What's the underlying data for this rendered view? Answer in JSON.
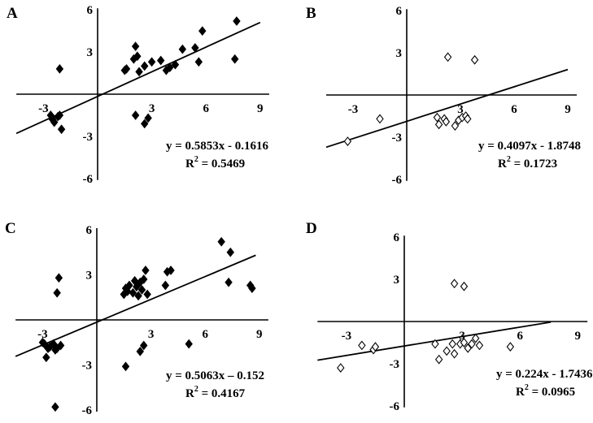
{
  "chart_data": [
    {
      "type": "scatter",
      "panel_label": "A",
      "marker": "filled-diamond",
      "xticks": [
        "-3",
        "3",
        "6",
        "9"
      ],
      "yticks": [
        "6",
        "3",
        "-3",
        "-6"
      ],
      "xlim": [
        -4.5,
        9.5
      ],
      "ylim": [
        -6,
        6
      ],
      "points": [
        [
          -2.1,
          1.8
        ],
        [
          -2.2,
          -1.6
        ],
        [
          -2.5,
          -1.8
        ],
        [
          -2.4,
          -2.0
        ],
        [
          -2.0,
          -2.5
        ],
        [
          -2.1,
          -1.5
        ],
        [
          -2.6,
          -1.5
        ],
        [
          1.5,
          1.7
        ],
        [
          1.6,
          1.8
        ],
        [
          2.0,
          2.5
        ],
        [
          2.1,
          3.4
        ],
        [
          2.2,
          2.7
        ],
        [
          2.3,
          1.6
        ],
        [
          2.6,
          2.0
        ],
        [
          3.0,
          2.3
        ],
        [
          3.5,
          2.4
        ],
        [
          3.8,
          1.7
        ],
        [
          4.0,
          1.9
        ],
        [
          4.3,
          2.1
        ],
        [
          4.7,
          3.2
        ],
        [
          5.4,
          3.3
        ],
        [
          5.6,
          2.3
        ],
        [
          5.8,
          4.5
        ],
        [
          7.7,
          5.2
        ],
        [
          7.6,
          2.5
        ],
        [
          2.1,
          -1.5
        ],
        [
          2.6,
          -2.1
        ],
        [
          2.8,
          -1.7
        ]
      ],
      "regression": {
        "slope": 0.5853,
        "intercept": -0.1616,
        "xrange": [
          -4.5,
          9.0
        ]
      },
      "equation": "y = 0.5853x - 0.1616",
      "r2_prefix": "R",
      "r2_sup": "2",
      "r2_value": " = 0.5469"
    },
    {
      "type": "scatter",
      "panel_label": "B",
      "marker": "open-diamond",
      "xticks": [
        "-3",
        "3",
        "6",
        "9"
      ],
      "yticks": [
        "6",
        "3",
        "-3",
        "-6"
      ],
      "xlim": [
        -4.5,
        9.5
      ],
      "ylim": [
        -6,
        6
      ],
      "points": [
        [
          -3.3,
          -3.3
        ],
        [
          -1.5,
          -1.7
        ],
        [
          1.7,
          -1.6
        ],
        [
          1.8,
          -2.1
        ],
        [
          2.1,
          -1.7
        ],
        [
          2.2,
          -1.9
        ],
        [
          2.7,
          -2.2
        ],
        [
          2.9,
          -1.8
        ],
        [
          3.1,
          -1.6
        ],
        [
          3.3,
          -1.5
        ],
        [
          3.4,
          -1.7
        ],
        [
          2.3,
          2.7
        ],
        [
          3.8,
          2.5
        ]
      ],
      "regression": {
        "slope": 0.4097,
        "intercept": -1.8748,
        "xrange": [
          -4.5,
          9.0
        ]
      },
      "equation": "y = 0.4097x - 1.8748",
      "r2_prefix": "R",
      "r2_sup": "2",
      "r2_value": " = 0.1723"
    },
    {
      "type": "scatter",
      "panel_label": "C",
      "marker": "filled-diamond",
      "xticks": [
        "-3",
        "3",
        "6",
        "9"
      ],
      "yticks": [
        "6",
        "3",
        "-3",
        "-6"
      ],
      "xlim": [
        -4.5,
        9.5
      ],
      "ylim": [
        -6,
        6
      ],
      "points": [
        [
          -2.1,
          2.8
        ],
        [
          -2.2,
          1.8
        ],
        [
          -2.4,
          -1.6
        ],
        [
          -2.6,
          -1.8
        ],
        [
          -2.2,
          -1.9
        ],
        [
          -2.0,
          -1.7
        ],
        [
          -2.8,
          -2.5
        ],
        [
          -2.9,
          -1.6
        ],
        [
          -3.0,
          -1.5
        ],
        [
          -2.3,
          -2.0
        ],
        [
          -2.7,
          -1.9
        ],
        [
          -2.3,
          -5.8
        ],
        [
          1.5,
          1.7
        ],
        [
          1.6,
          2.1
        ],
        [
          1.7,
          1.9
        ],
        [
          1.8,
          2.3
        ],
        [
          2.0,
          1.8
        ],
        [
          2.1,
          2.6
        ],
        [
          2.2,
          2.2
        ],
        [
          2.3,
          1.6
        ],
        [
          2.4,
          2.5
        ],
        [
          2.5,
          2.0
        ],
        [
          2.6,
          2.7
        ],
        [
          2.7,
          3.3
        ],
        [
          2.8,
          1.7
        ],
        [
          3.8,
          2.3
        ],
        [
          3.9,
          3.2
        ],
        [
          4.1,
          3.3
        ],
        [
          6.9,
          5.2
        ],
        [
          7.4,
          4.5
        ],
        [
          7.3,
          2.5
        ],
        [
          8.5,
          2.3
        ],
        [
          8.6,
          2.1
        ],
        [
          1.6,
          -3.1
        ],
        [
          2.4,
          -2.1
        ],
        [
          2.6,
          -1.7
        ],
        [
          5.1,
          -1.6
        ]
      ],
      "regression": {
        "slope": 0.5063,
        "intercept": -0.152,
        "xrange": [
          -4.5,
          8.8
        ]
      },
      "equation": "y = 0.5063x – 0.152",
      "r2_prefix": "R",
      "r2_sup": "2",
      "r2_value": " = 0.4167"
    },
    {
      "type": "scatter",
      "panel_label": "D",
      "marker": "open-diamond",
      "xticks": [
        "-3",
        "3",
        "6",
        "9"
      ],
      "yticks": [
        "6",
        "3",
        "-3",
        "-6"
      ],
      "xlim": [
        -4.5,
        9.5
      ],
      "ylim": [
        -6,
        6
      ],
      "points": [
        [
          -3.3,
          -3.3
        ],
        [
          -2.2,
          -1.7
        ],
        [
          -1.6,
          -2.0
        ],
        [
          -1.5,
          -1.8
        ],
        [
          1.6,
          -1.6
        ],
        [
          1.8,
          -2.7
        ],
        [
          2.2,
          -2.1
        ],
        [
          2.5,
          -1.6
        ],
        [
          2.6,
          -2.3
        ],
        [
          2.9,
          -1.6
        ],
        [
          3.1,
          -1.5
        ],
        [
          3.3,
          -1.9
        ],
        [
          3.5,
          -1.6
        ],
        [
          3.7,
          -1.2
        ],
        [
          3.9,
          -1.7
        ],
        [
          2.6,
          2.7
        ],
        [
          3.1,
          2.5
        ],
        [
          5.5,
          -1.8
        ]
      ],
      "regression": {
        "slope": 0.224,
        "intercept": -1.7436,
        "xrange": [
          -4.5,
          7.6
        ]
      },
      "equation": "y = 0.224x - 1.7436",
      "r2_prefix": "R",
      "r2_sup": "2",
      "r2_value": " = 0.0965"
    }
  ]
}
